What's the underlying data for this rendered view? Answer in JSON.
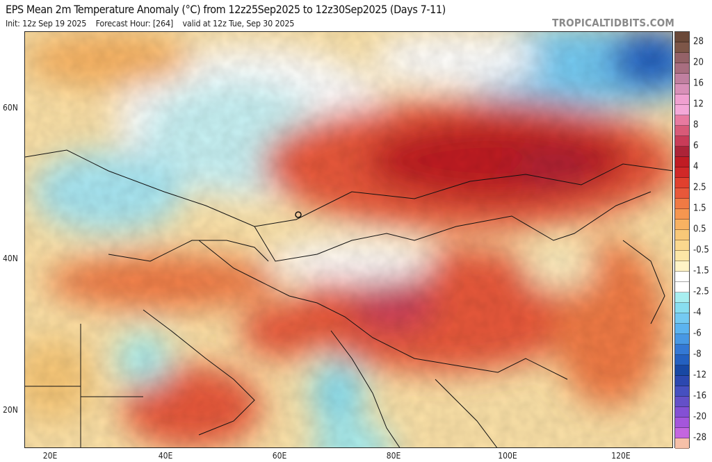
{
  "header": {
    "title": "EPS Mean 2m Temperature Anomaly (°C) from 12z25Sep2025 to 12z30Sep2025 (Days 7-11)",
    "init": "Init: 12z Sep 19 2025",
    "forecast_hour": "Forecast Hour: [264]",
    "valid": "valid at 12z Tue, Sep 30 2025",
    "brand": "TROPICALTIDBITS.COM"
  },
  "map": {
    "region": "Europe / Middle East / Asia",
    "lat_labels": [
      "60N",
      "40N",
      "20N"
    ],
    "lon_labels": [
      "20E",
      "40E",
      "60E",
      "80E",
      "100E",
      "120E"
    ]
  },
  "colorbar": {
    "labels": [
      "28",
      "20",
      "16",
      "12",
      "8",
      "6",
      "4",
      "2.5",
      "1.5",
      "0.5",
      "-0.5",
      "-1.5",
      "-2.5",
      "-4",
      "-6",
      "-8",
      "-12",
      "-16",
      "-20",
      "-28"
    ],
    "colors": [
      "#6a4838",
      "#7d5648",
      "#946268",
      "#a86e80",
      "#c080a0",
      "#d890b8",
      "#f0a0d0",
      "#f4a8d8",
      "#e87aa0",
      "#d85a78",
      "#c83c58",
      "#ac2438",
      "#c01c24",
      "#d02828",
      "#e0402e",
      "#e8583a",
      "#f07a44",
      "#f59650",
      "#f8b262",
      "#f8c878",
      "#fad88e",
      "#fce6a6",
      "#fff3c6",
      "#ffffff",
      "#ffffff",
      "#a8eef0",
      "#88def0",
      "#74caf2",
      "#5cb4f0",
      "#4898e4",
      "#3478d4",
      "#2460c0",
      "#1848a4",
      "#2c48b0",
      "#4650c0",
      "#6450c8",
      "#8450d4",
      "#a456dc",
      "#c466e0",
      "#f6c0a8"
    ]
  }
}
